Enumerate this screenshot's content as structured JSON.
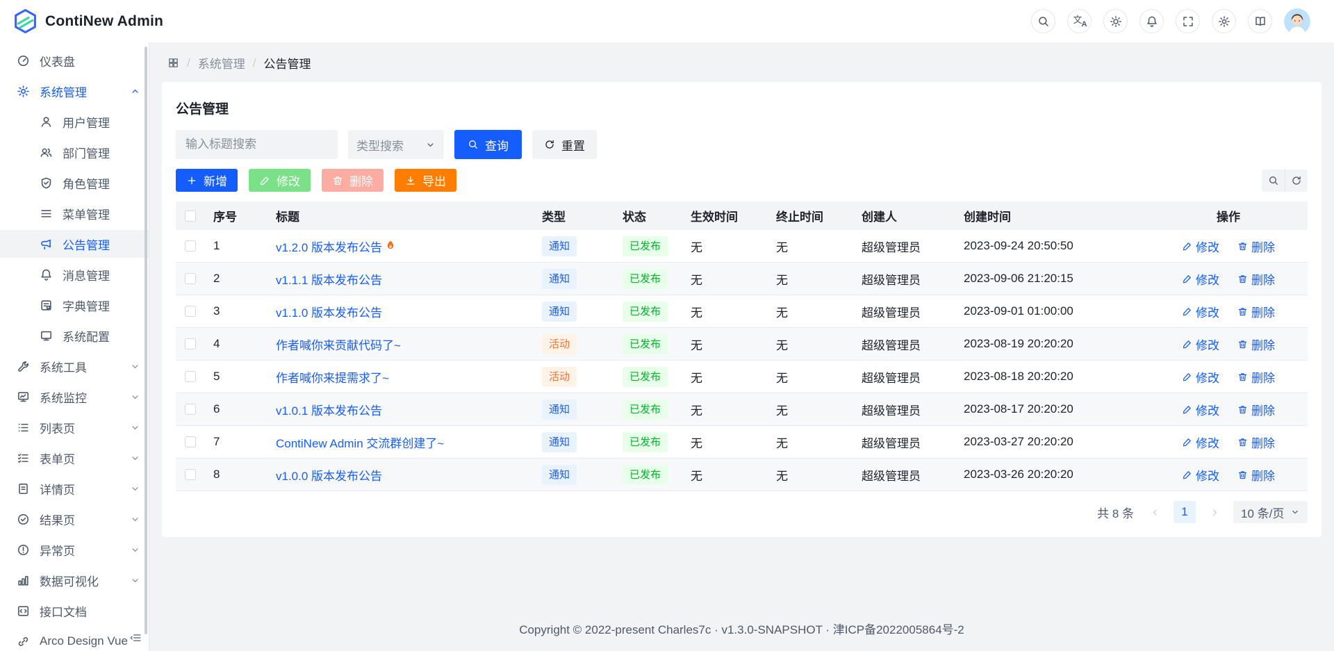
{
  "app": {
    "title": "ContiNew Admin"
  },
  "header": {
    "icons": [
      "search",
      "translate",
      "sun",
      "bell",
      "fullscreen",
      "gear",
      "book"
    ],
    "avatar": "user-avatar"
  },
  "sidebar": {
    "items": [
      {
        "label": "仪表盘",
        "icon": "dashboard"
      },
      {
        "label": "系统管理",
        "icon": "gear",
        "expanded": true,
        "highlight": true,
        "children": [
          {
            "label": "用户管理",
            "icon": "user"
          },
          {
            "label": "部门管理",
            "icon": "users"
          },
          {
            "label": "角色管理",
            "icon": "shield"
          },
          {
            "label": "菜单管理",
            "icon": "menu"
          },
          {
            "label": "公告管理",
            "icon": "megaphone",
            "active": true
          },
          {
            "label": "消息管理",
            "icon": "bell"
          },
          {
            "label": "字典管理",
            "icon": "dict"
          },
          {
            "label": "系统配置",
            "icon": "monitor"
          }
        ]
      },
      {
        "label": "系统工具",
        "icon": "wrench",
        "collapsible": true
      },
      {
        "label": "系统监控",
        "icon": "monitor-chart",
        "collapsible": true
      },
      {
        "label": "列表页",
        "icon": "list",
        "collapsible": true
      },
      {
        "label": "表单页",
        "icon": "form",
        "collapsible": true
      },
      {
        "label": "详情页",
        "icon": "doc",
        "collapsible": true
      },
      {
        "label": "结果页",
        "icon": "check-circle",
        "collapsible": true
      },
      {
        "label": "异常页",
        "icon": "exclamation-circle",
        "collapsible": true
      },
      {
        "label": "数据可视化",
        "icon": "bar-chart",
        "collapsible": true
      },
      {
        "label": "接口文档",
        "icon": "api"
      },
      {
        "label": "Arco Design Vue",
        "icon": "link"
      }
    ]
  },
  "breadcrumb": {
    "items": [
      "系统管理",
      "公告管理"
    ]
  },
  "page": {
    "title": "公告管理",
    "search": {
      "title_placeholder": "输入标题搜索",
      "type_placeholder": "类型搜索",
      "query_label": "查询",
      "reset_label": "重置"
    },
    "toolbar": {
      "buttons": [
        {
          "label": "新增",
          "icon": "plus",
          "style": "primary",
          "disabled": false
        },
        {
          "label": "修改",
          "icon": "edit",
          "style": "success",
          "disabled": true
        },
        {
          "label": "删除",
          "icon": "trash",
          "style": "danger",
          "disabled": true
        },
        {
          "label": "导出",
          "icon": "download",
          "style": "warning",
          "disabled": false
        }
      ]
    },
    "table": {
      "columns": [
        "序号",
        "标题",
        "类型",
        "状态",
        "生效时间",
        "终止时间",
        "创建人",
        "创建时间",
        "操作"
      ],
      "edit_label": "修改",
      "delete_label": "删除",
      "rows": [
        {
          "no": "1",
          "title": "v1.2.0 版本发布公告",
          "fire": true,
          "type": "通知",
          "status": "已发布",
          "effect": "无",
          "end": "无",
          "creator": "超级管理员",
          "created": "2023-09-24 20:50:50"
        },
        {
          "no": "2",
          "title": "v1.1.1 版本发布公告",
          "fire": false,
          "type": "通知",
          "status": "已发布",
          "effect": "无",
          "end": "无",
          "creator": "超级管理员",
          "created": "2023-09-06 21:20:15"
        },
        {
          "no": "3",
          "title": "v1.1.0 版本发布公告",
          "fire": false,
          "type": "通知",
          "status": "已发布",
          "effect": "无",
          "end": "无",
          "creator": "超级管理员",
          "created": "2023-09-01 01:00:00"
        },
        {
          "no": "4",
          "title": "作者喊你来贡献代码了~",
          "fire": false,
          "type": "活动",
          "status": "已发布",
          "effect": "无",
          "end": "无",
          "creator": "超级管理员",
          "created": "2023-08-19 20:20:20"
        },
        {
          "no": "5",
          "title": "作者喊你来提需求了~",
          "fire": false,
          "type": "活动",
          "status": "已发布",
          "effect": "无",
          "end": "无",
          "creator": "超级管理员",
          "created": "2023-08-18 20:20:20"
        },
        {
          "no": "6",
          "title": "v1.0.1 版本发布公告",
          "fire": false,
          "type": "通知",
          "status": "已发布",
          "effect": "无",
          "end": "无",
          "creator": "超级管理员",
          "created": "2023-08-17 20:20:20"
        },
        {
          "no": "7",
          "title": "ContiNew Admin 交流群创建了~",
          "fire": false,
          "type": "通知",
          "status": "已发布",
          "effect": "无",
          "end": "无",
          "creator": "超级管理员",
          "created": "2023-03-27 20:20:20"
        },
        {
          "no": "8",
          "title": "v1.0.0 版本发布公告",
          "fire": false,
          "type": "通知",
          "status": "已发布",
          "effect": "无",
          "end": "无",
          "creator": "超级管理员",
          "created": "2023-03-26 20:20:20"
        }
      ]
    },
    "pagination": {
      "total": "共 8 条",
      "page": "1",
      "page_size": "10 条/页"
    }
  },
  "footer": {
    "copyright": "Copyright © 2022-present Charles7c · v1.3.0-SNAPSHOT · 津ICP备2022005864号-2"
  },
  "colors": {
    "primary": "#165DFF",
    "success": "#00B42A",
    "warning_orange": "#FF7D00",
    "success_disabled": "#7BE188",
    "danger_disabled": "#FBACA3",
    "tags": {
      "通知": {
        "bg": "#E8F3FF",
        "text": "#165DFF"
      },
      "活动": {
        "bg": "#FFF3E8",
        "text": "#F77234"
      },
      "已发布": {
        "bg": "#E8FFEA",
        "text": "#00B42A"
      }
    }
  }
}
